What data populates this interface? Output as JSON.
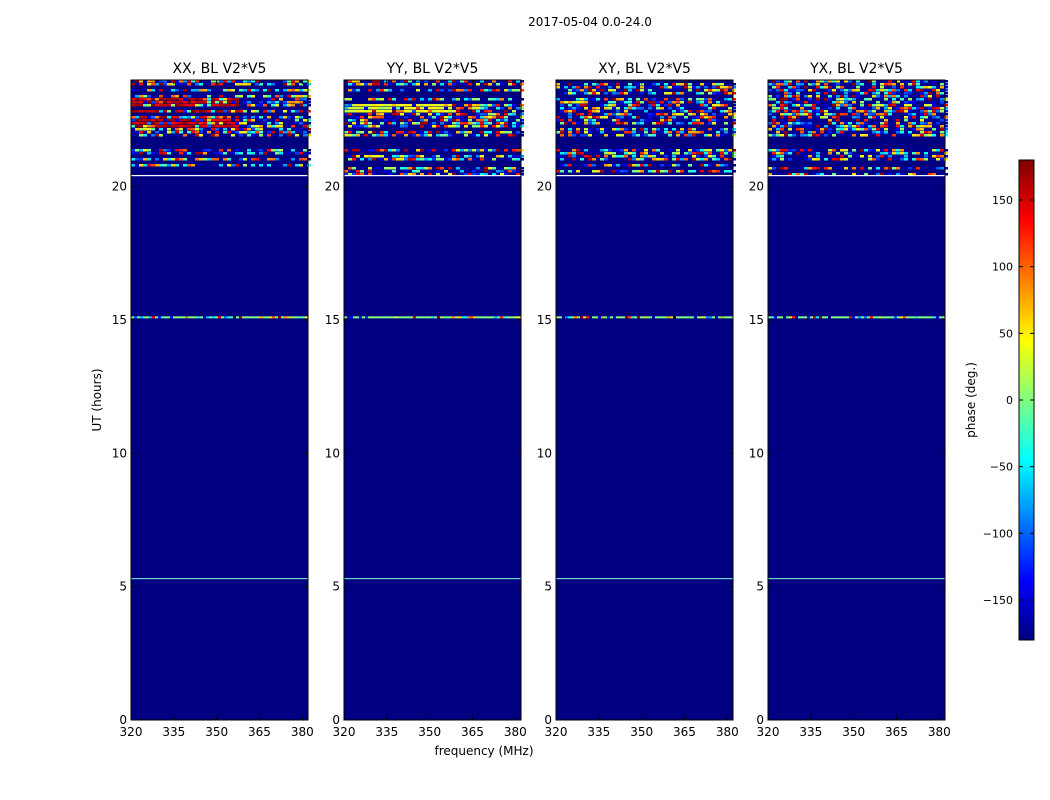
{
  "chart_data": {
    "type": "heatmap",
    "suptitle": "2017-05-04 0.0-24.0",
    "xlabel": "frequency (MHz)",
    "ylabel": "UT (hours)",
    "xlim": [
      320,
      382
    ],
    "ylim": [
      0,
      24
    ],
    "xticks": [
      320,
      335,
      350,
      365,
      380
    ],
    "yticks": [
      0,
      5,
      10,
      15,
      20
    ],
    "colorbar": {
      "label": "phase (deg.)",
      "range": [
        -180,
        180
      ],
      "ticks": [
        -150,
        -100,
        -50,
        0,
        50,
        100,
        150
      ],
      "tick_labels": [
        "−150",
        "−100",
        "−50",
        "0",
        "50",
        "100",
        "150"
      ],
      "colormap": [
        "#00007f",
        "#0000ff",
        "#007fff",
        "#00ffff",
        "#7fff7f",
        "#ffff00",
        "#ff7f00",
        "#ff0000",
        "#7f0000"
      ]
    },
    "panels": [
      {
        "title": "XX, BL V2*V5",
        "background_phase": -180,
        "noisy_band_hours": [
          20.4,
          24.0
        ],
        "gap_bands_hours": [
          [
            21.5,
            21.9
          ],
          [
            20.9,
            21.0
          ]
        ],
        "strong_red_region": {
          "freq": [
            320,
            357
          ],
          "hours": [
            22.3,
            23.4
          ]
        },
        "artifact_lines_hours": [
          5.3,
          15.1
        ]
      },
      {
        "title": "YY, BL V2*V5",
        "background_phase": -180,
        "noisy_band_hours": [
          20.4,
          24.0
        ],
        "gap_bands_hours": [
          [
            21.5,
            21.9
          ],
          [
            20.9,
            21.0
          ]
        ],
        "yellow_region": {
          "freq": [
            320,
            358
          ],
          "hours": [
            22.8,
            23.3
          ]
        },
        "artifact_lines_hours": [
          5.3,
          15.1
        ]
      },
      {
        "title": "XY, BL V2*V5",
        "background_phase": -180,
        "noisy_band_hours": [
          20.4,
          24.0
        ],
        "gap_bands_hours": [
          [
            21.5,
            21.9
          ],
          [
            20.9,
            21.0
          ]
        ],
        "artifact_lines_hours": [
          5.3,
          15.1
        ]
      },
      {
        "title": "YX, BL V2*V5",
        "background_phase": -180,
        "noisy_band_hours": [
          20.4,
          24.0
        ],
        "gap_bands_hours": [
          [
            21.5,
            21.9
          ],
          [
            20.9,
            21.0
          ]
        ],
        "artifact_lines_hours": [
          5.3,
          15.1
        ]
      }
    ]
  }
}
